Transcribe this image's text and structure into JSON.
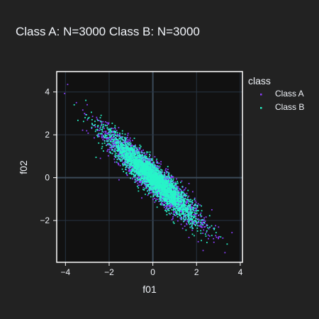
{
  "chart_data": {
    "type": "scatter",
    "title": "Class A: N=3000   Class B: N=3000",
    "xlabel": "f01",
    "ylabel": "f02",
    "xlim": [
      -4.4,
      4.1
    ],
    "ylim": [
      -3.95,
      4.95
    ],
    "xticks": [
      -4,
      -2,
      0,
      2,
      4
    ],
    "xtick_labels": [
      "−4",
      "−2",
      "0",
      "2",
      "4"
    ],
    "yticks": [
      -2,
      0,
      2,
      4
    ],
    "ytick_labels": [
      "−2",
      "0",
      "2",
      "4"
    ],
    "grid": true,
    "legend": {
      "title": "class",
      "position": "right"
    },
    "series": [
      {
        "name": "Class A",
        "color": "#8a3ffc",
        "n": 3000,
        "distribution": {
          "mean_x": 0.0,
          "mean_y": 0.0,
          "sd_x": 1.0,
          "sd_y": 1.0,
          "correlation": -0.93
        },
        "points": [
          [
            -3.9,
            4.35
          ],
          [
            3.3,
            -3.5
          ],
          [
            -3.5,
            3.5
          ],
          [
            3.0,
            -2.8
          ],
          [
            2.3,
            -3.4
          ],
          [
            -2.8,
            2.3
          ],
          [
            2.7,
            -1.5
          ],
          [
            -2.4,
            0.9
          ]
        ]
      },
      {
        "name": "Class B",
        "color": "#27f5c8",
        "n": 3000,
        "distribution": {
          "mean_x": 0.0,
          "mean_y": 0.0,
          "sd_x": 0.95,
          "sd_y": 0.95,
          "correlation": -0.93
        },
        "points": [
          [
            -3.6,
            3.4
          ],
          [
            3.4,
            -3.1
          ],
          [
            -2.6,
            0.95
          ],
          [
            2.7,
            -2.7
          ],
          [
            -3.1,
            2.8
          ],
          [
            2.2,
            -2.6
          ]
        ]
      }
    ]
  }
}
